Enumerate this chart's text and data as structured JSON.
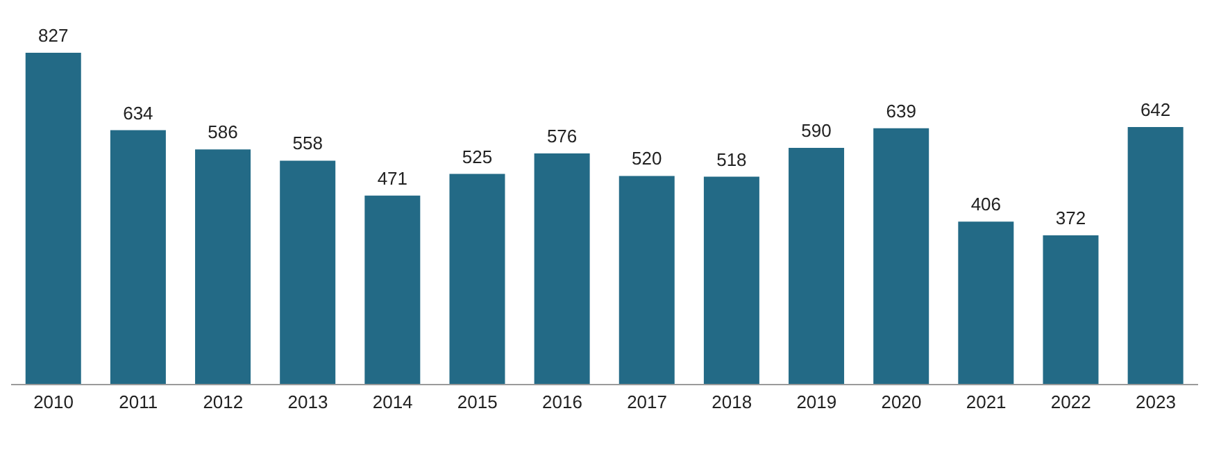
{
  "chart_data": {
    "type": "bar",
    "categories": [
      "2010",
      "2011",
      "2012",
      "2013",
      "2014",
      "2015",
      "2016",
      "2017",
      "2018",
      "2019",
      "2020",
      "2021",
      "2022",
      "2023"
    ],
    "values": [
      827,
      634,
      586,
      558,
      471,
      525,
      576,
      520,
      518,
      590,
      639,
      406,
      372,
      642
    ],
    "color": "#236a86",
    "data_labels": true
  }
}
